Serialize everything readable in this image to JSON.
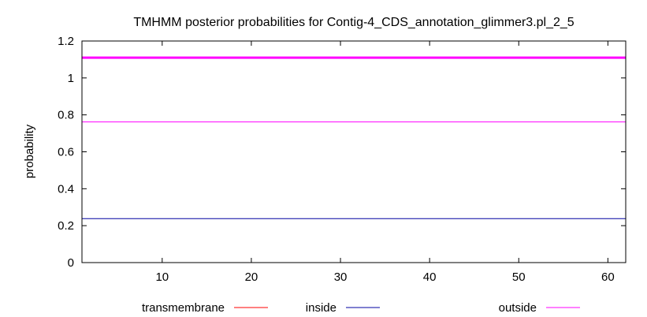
{
  "chart_data": {
    "type": "line",
    "title": "TMHMM posterior probabilities for Contig-4_CDS_annotation_glimmer3.pl_2_5",
    "xlabel": "",
    "ylabel": "probability",
    "xlim": [
      1,
      62
    ],
    "ylim": [
      0,
      1.2
    ],
    "x_ticks": [
      10,
      20,
      30,
      40,
      50,
      60
    ],
    "y_ticks": [
      0,
      0.2,
      0.4,
      0.6,
      0.8,
      1,
      1.2
    ],
    "y_tick_labels": [
      "0",
      "0.2",
      "0.4",
      "0.6",
      "0.8",
      "1",
      "1.2"
    ],
    "grid": false,
    "legend_position": "bottom",
    "series": [
      {
        "name": "transmembrane",
        "color": "#ff0000",
        "x": [
          1,
          62
        ],
        "y": [
          0,
          0
        ]
      },
      {
        "name": "inside",
        "color": "#0000a0",
        "x": [
          1,
          62
        ],
        "y": [
          0.238,
          0.238
        ]
      },
      {
        "name": "outside",
        "color": "#ff00ff",
        "x": [
          1,
          62
        ],
        "y": [
          0.762,
          0.762
        ]
      }
    ],
    "annotations": [
      {
        "name": "membrane-segment-bar",
        "color": "#ff00ff",
        "x": [
          1,
          62
        ],
        "y": [
          1.11,
          1.11
        ]
      }
    ]
  }
}
